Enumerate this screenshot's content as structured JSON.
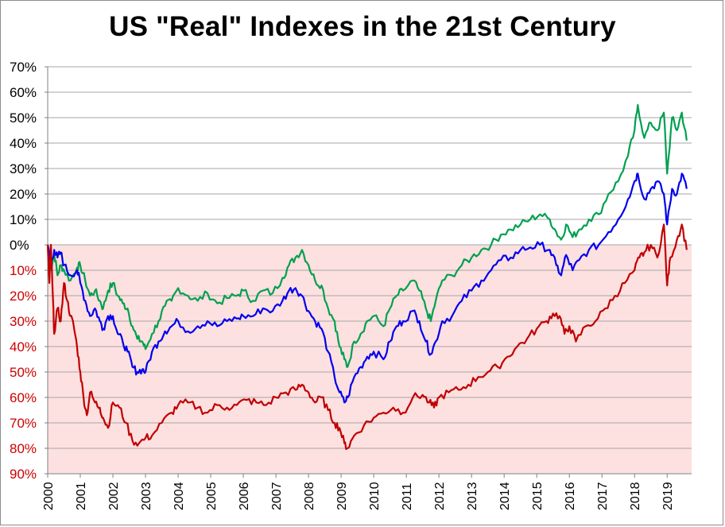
{
  "title": "US \"Real\" Indexes in the 21st Century",
  "chart_data": {
    "type": "line",
    "title": "US \"Real\" Indexes in the 21st Century",
    "xlabel": "",
    "ylabel": "",
    "xlim": [
      2000,
      2019.75
    ],
    "ylim": [
      -90,
      70
    ],
    "negative_region_shading": "#fde0e0",
    "grid": true,
    "legend": "none",
    "y_ticks": [
      70,
      60,
      50,
      40,
      30,
      20,
      10,
      0,
      -10,
      -20,
      -30,
      -40,
      -50,
      -60,
      -70,
      -80,
      -90
    ],
    "y_tick_labels": [
      "70%",
      "60%",
      "50%",
      "40%",
      "30%",
      "20%",
      "10%",
      "0%",
      "10%",
      "20%",
      "30%",
      "40%",
      "50%",
      "60%",
      "70%",
      "80%",
      "90%"
    ],
    "y_tick_colors": {
      "positive": "#000000",
      "negative": "#cc0000"
    },
    "x_ticks": [
      2000,
      2001,
      2002,
      2003,
      2004,
      2005,
      2006,
      2007,
      2008,
      2009,
      2010,
      2011,
      2012,
      2013,
      2014,
      2015,
      2016,
      2017,
      2018,
      2019
    ],
    "x_tick_labels": [
      "2000",
      "2001",
      "2002",
      "2003",
      "2004",
      "2005",
      "2006",
      "2007",
      "2008",
      "2009",
      "2010",
      "2011",
      "2012",
      "2013",
      "2014",
      "2015",
      "2016",
      "2017",
      "2018",
      "2019"
    ],
    "series": [
      {
        "color": "#00a050",
        "x": [
          2000.0,
          2000.1,
          2000.2,
          2000.3,
          2000.4,
          2000.5,
          2000.7,
          2000.9,
          2001.0,
          2001.15,
          2001.3,
          2001.45,
          2001.6,
          2001.7,
          2001.85,
          2002.0,
          2002.15,
          2002.3,
          2002.45,
          2002.6,
          2002.75,
          2002.9,
          2003.0,
          2003.2,
          2003.4,
          2003.6,
          2003.8,
          2004.0,
          2004.3,
          2004.6,
          2004.9,
          2005.2,
          2005.5,
          2005.8,
          2006.0,
          2006.3,
          2006.6,
          2006.9,
          2007.2,
          2007.4,
          2007.6,
          2007.8,
          2008.0,
          2008.2,
          2008.4,
          2008.6,
          2008.8,
          2008.95,
          2009.1,
          2009.2,
          2009.4,
          2009.6,
          2009.8,
          2010.0,
          2010.3,
          2010.5,
          2010.7,
          2010.9,
          2011.2,
          2011.4,
          2011.6,
          2011.75,
          2011.9,
          2012.1,
          2012.4,
          2012.7,
          2013.0,
          2013.3,
          2013.6,
          2013.9,
          2014.2,
          2014.5,
          2014.8,
          2015.1,
          2015.4,
          2015.6,
          2015.75,
          2015.9,
          2016.1,
          2016.3,
          2016.6,
          2016.9,
          2017.2,
          2017.5,
          2017.8,
          2018.0,
          2018.1,
          2018.3,
          2018.5,
          2018.7,
          2018.9,
          2019.0,
          2019.15,
          2019.3,
          2019.45,
          2019.6
        ],
        "values": [
          0,
          -10,
          -3,
          -12,
          -8,
          -10,
          -14,
          -9,
          -8,
          -14,
          -20,
          -18,
          -22,
          -25,
          -18,
          -15,
          -20,
          -23,
          -25,
          -32,
          -37,
          -38,
          -41,
          -35,
          -30,
          -24,
          -22,
          -17,
          -20,
          -22,
          -19,
          -23,
          -21,
          -20,
          -18,
          -22,
          -18,
          -19,
          -13,
          -8,
          -5,
          -2,
          -8,
          -14,
          -16,
          -25,
          -30,
          -40,
          -45,
          -48,
          -38,
          -35,
          -30,
          -28,
          -32,
          -25,
          -20,
          -18,
          -14,
          -18,
          -25,
          -30,
          -22,
          -14,
          -12,
          -8,
          -5,
          -2,
          0,
          4,
          6,
          8,
          10,
          12,
          10,
          5,
          2,
          8,
          3,
          6,
          10,
          12,
          20,
          25,
          35,
          45,
          55,
          42,
          48,
          45,
          52,
          28,
          50,
          45,
          52,
          41
        ]
      },
      {
        "color": "#0000ee",
        "x": [
          2000.0,
          2000.1,
          2000.2,
          2000.3,
          2000.4,
          2000.5,
          2000.7,
          2000.9,
          2001.0,
          2001.15,
          2001.3,
          2001.45,
          2001.6,
          2001.7,
          2001.85,
          2002.0,
          2002.15,
          2002.3,
          2002.45,
          2002.6,
          2002.75,
          2002.9,
          2003.0,
          2003.2,
          2003.4,
          2003.6,
          2003.8,
          2004.0,
          2004.3,
          2004.6,
          2004.9,
          2005.2,
          2005.5,
          2005.8,
          2006.0,
          2006.3,
          2006.6,
          2006.9,
          2007.2,
          2007.4,
          2007.6,
          2007.8,
          2008.0,
          2008.2,
          2008.4,
          2008.6,
          2008.8,
          2008.95,
          2009.1,
          2009.2,
          2009.4,
          2009.6,
          2009.8,
          2010.0,
          2010.3,
          2010.5,
          2010.7,
          2010.9,
          2011.2,
          2011.4,
          2011.6,
          2011.75,
          2011.9,
          2012.1,
          2012.4,
          2012.7,
          2013.0,
          2013.3,
          2013.6,
          2013.9,
          2014.2,
          2014.5,
          2014.8,
          2015.1,
          2015.4,
          2015.6,
          2015.75,
          2015.9,
          2016.1,
          2016.3,
          2016.6,
          2016.9,
          2017.2,
          2017.5,
          2017.8,
          2018.0,
          2018.1,
          2018.3,
          2018.5,
          2018.7,
          2018.9,
          2019.0,
          2019.15,
          2019.3,
          2019.45,
          2019.6
        ],
        "values": [
          0,
          -8,
          -2,
          -5,
          -3,
          -8,
          -12,
          -10,
          -15,
          -22,
          -28,
          -25,
          -30,
          -33,
          -28,
          -28,
          -35,
          -38,
          -42,
          -48,
          -50,
          -49,
          -50,
          -42,
          -38,
          -34,
          -32,
          -30,
          -34,
          -32,
          -30,
          -32,
          -30,
          -29,
          -28,
          -28,
          -25,
          -26,
          -22,
          -18,
          -17,
          -20,
          -26,
          -30,
          -33,
          -42,
          -52,
          -58,
          -62,
          -60,
          -52,
          -48,
          -44,
          -42,
          -45,
          -38,
          -32,
          -30,
          -26,
          -30,
          -38,
          -43,
          -38,
          -30,
          -28,
          -22,
          -18,
          -14,
          -10,
          -6,
          -5,
          -2,
          -1,
          0,
          -2,
          -8,
          -12,
          -4,
          -10,
          -6,
          -2,
          0,
          5,
          10,
          18,
          25,
          28,
          18,
          22,
          25,
          20,
          8,
          22,
          20,
          28,
          22
        ]
      },
      {
        "color": "#c00000",
        "x": [
          2000.0,
          2000.05,
          2000.1,
          2000.15,
          2000.2,
          2000.3,
          2000.4,
          2000.5,
          2000.6,
          2000.7,
          2000.8,
          2000.9,
          2001.0,
          2001.1,
          2001.2,
          2001.3,
          2001.45,
          2001.6,
          2001.7,
          2001.85,
          2002.0,
          2002.2,
          2002.4,
          2002.6,
          2002.8,
          2003.0,
          2003.2,
          2003.5,
          2003.8,
          2004.0,
          2004.3,
          2004.6,
          2004.9,
          2005.2,
          2005.5,
          2005.8,
          2006.1,
          2006.4,
          2006.7,
          2007.0,
          2007.3,
          2007.6,
          2007.8,
          2008.0,
          2008.2,
          2008.4,
          2008.6,
          2008.8,
          2008.95,
          2009.1,
          2009.2,
          2009.4,
          2009.7,
          2010.0,
          2010.3,
          2010.6,
          2010.9,
          2011.2,
          2011.5,
          2011.7,
          2011.85,
          2012.0,
          2012.3,
          2012.6,
          2012.9,
          2013.2,
          2013.5,
          2013.8,
          2014.1,
          2014.4,
          2014.7,
          2015.0,
          2015.3,
          2015.5,
          2015.7,
          2015.85,
          2016.0,
          2016.2,
          2016.5,
          2016.8,
          2017.1,
          2017.4,
          2017.7,
          2018.0,
          2018.15,
          2018.3,
          2018.5,
          2018.7,
          2018.9,
          2019.0,
          2019.1,
          2019.3,
          2019.45,
          2019.6
        ],
        "values": [
          0,
          -15,
          0,
          -18,
          -35,
          -25,
          -30,
          -15,
          -22,
          -28,
          -32,
          -40,
          -50,
          -60,
          -67,
          -58,
          -62,
          -64,
          -68,
          -72,
          -62,
          -64,
          -70,
          -77,
          -78,
          -76,
          -75,
          -70,
          -66,
          -63,
          -62,
          -64,
          -66,
          -63,
          -64,
          -63,
          -61,
          -62,
          -63,
          -60,
          -58,
          -57,
          -55,
          -58,
          -62,
          -60,
          -65,
          -70,
          -72,
          -78,
          -80,
          -75,
          -71,
          -68,
          -66,
          -64,
          -66,
          -60,
          -59,
          -62,
          -64,
          -60,
          -58,
          -57,
          -55,
          -52,
          -50,
          -48,
          -44,
          -40,
          -37,
          -33,
          -30,
          -27,
          -28,
          -35,
          -32,
          -38,
          -32,
          -30,
          -25,
          -20,
          -15,
          -10,
          -5,
          -3,
          0,
          -5,
          8,
          -16,
          -5,
          2,
          8,
          -2
        ]
      }
    ]
  }
}
